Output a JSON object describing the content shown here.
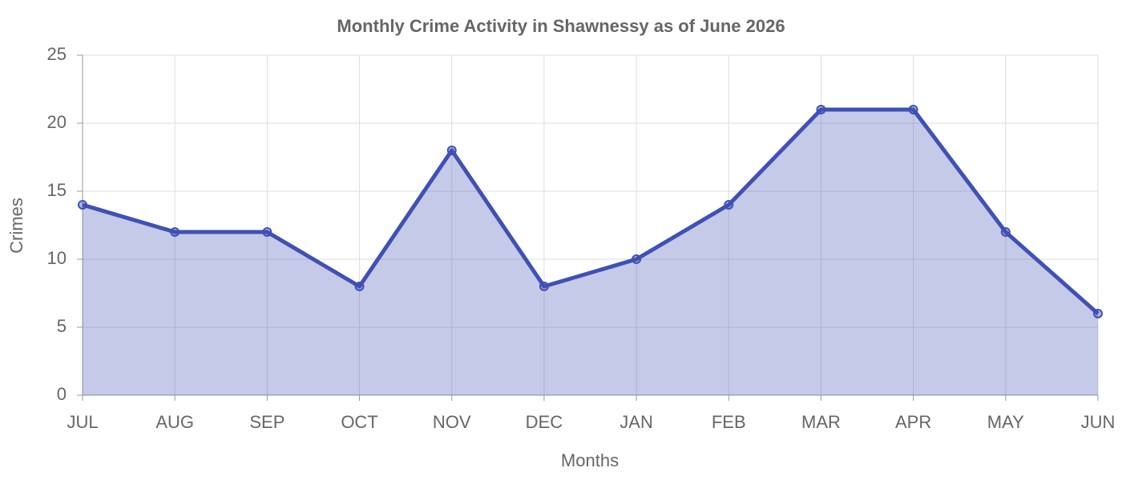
{
  "chart_data": {
    "type": "area",
    "title": "Monthly Crime Activity in Shawnessy as of June 2026",
    "x_label": "Months",
    "y_label": "Crimes",
    "categories": [
      "JUL",
      "AUG",
      "SEP",
      "OCT",
      "NOV",
      "DEC",
      "JAN",
      "FEB",
      "MAR",
      "APR",
      "MAY",
      "JUN"
    ],
    "values": [
      14,
      12,
      12,
      8,
      18,
      8,
      10,
      14,
      21,
      21,
      12,
      6
    ],
    "color": "#3f51b5",
    "ylim": [
      0,
      25
    ],
    "yticks": [
      0,
      5,
      10,
      15,
      20,
      25
    ],
    "grid": true
  }
}
